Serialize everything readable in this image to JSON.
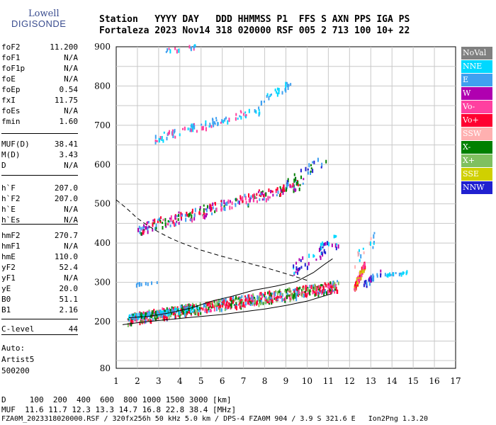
{
  "logo": {
    "line1": "Lowell",
    "line2": "DIGISONDE"
  },
  "header": {
    "line1": "Station   YYYY DAY   DDD HHMMSS P1  FFS S AXN PPS IGA PS",
    "line2": "Fortaleza 2023 Nov14 318 020000 RSF 005 2 713 100 10+ 22"
  },
  "params": [
    {
      "k": "foF2",
      "v": "11.200"
    },
    {
      "k": "foF1",
      "v": "N/A"
    },
    {
      "k": "foF1p",
      "v": "N/A"
    },
    {
      "k": "foE",
      "v": "N/A"
    },
    {
      "k": "foEp",
      "v": "0.54"
    },
    {
      "k": "fxI",
      "v": "11.75"
    },
    {
      "k": "foEs",
      "v": "N/A"
    },
    {
      "k": "fmin",
      "v": "1.60"
    },
    {
      "k": "MUF(D)",
      "v": "38.41"
    },
    {
      "k": "M(D)",
      "v": "3.43"
    },
    {
      "k": "D",
      "v": "N/A"
    },
    {
      "k": "h`F",
      "v": "207.0"
    },
    {
      "k": "h`F2",
      "v": "207.0"
    },
    {
      "k": "h`E",
      "v": "N/A"
    },
    {
      "k": "h`Es",
      "v": "N/A"
    },
    {
      "k": "hmF2",
      "v": "270.7"
    },
    {
      "k": "hmF1",
      "v": "N/A"
    },
    {
      "k": "hmE",
      "v": "110.0"
    },
    {
      "k": "yF2",
      "v": "52.4"
    },
    {
      "k": "yF1",
      "v": "N/A"
    },
    {
      "k": "yE",
      "v": "20.0"
    },
    {
      "k": "B0",
      "v": "51.1"
    },
    {
      "k": "B1",
      "v": "2.16"
    },
    {
      "k": "C-level",
      "v": "44"
    }
  ],
  "auto": {
    "l1": "Auto:",
    "l2": "Artist5",
    "l3": "500200"
  },
  "legend": [
    {
      "label": "NoVal",
      "color": "#808080"
    },
    {
      "label": "NNE",
      "color": "#00d8ff"
    },
    {
      "label": "E",
      "color": "#40a0f0"
    },
    {
      "label": "W",
      "color": "#b000b0"
    },
    {
      "label": "Vo-",
      "color": "#ff40a0"
    },
    {
      "label": "Vo+",
      "color": "#ff0030"
    },
    {
      "label": "SSW",
      "color": "#ffb0b0"
    },
    {
      "label": "X-",
      "color": "#008000"
    },
    {
      "label": "X+",
      "color": "#80c060"
    },
    {
      "label": "SSE",
      "color": "#d0d000"
    },
    {
      "label": "NNW",
      "color": "#2020d0"
    }
  ],
  "bottom": {
    "line1": "D     100  200  400  600  800 1000 1500 3000 [km]",
    "line2": "MUF  11.6 11.7 12.3 13.3 14.7 16.8 22.8 38.4 [MHz]",
    "line3": "FZA0M_2023318020000.RSF / 320fx256h 50 kHz 5.0 km / DPS-4 FZA0M 904 / 3.9 S 321.6 E   Ion2Png 1.3.20"
  },
  "chart_data": {
    "type": "scatter",
    "xlim": [
      1,
      17
    ],
    "ylim": [
      80,
      900
    ],
    "xticks": [
      1,
      2,
      3,
      4,
      5,
      6,
      7,
      8,
      9,
      10,
      11,
      12,
      13,
      14,
      15,
      16,
      17
    ],
    "yticks": [
      80,
      200,
      300,
      400,
      500,
      600,
      700,
      800,
      900
    ],
    "grid": true,
    "clusters": [
      {
        "x": [
          1.5,
          11.5
        ],
        "y": [
          205,
          290
        ],
        "dy": 14,
        "n": 700,
        "colors": [
          "#ff0030",
          "#ff0030",
          "#ff40a0",
          "#008000",
          "#80c060",
          "#40a0f0"
        ]
      },
      {
        "x": [
          1.5,
          5.0
        ],
        "y": [
          210,
          235
        ],
        "dy": 6,
        "n": 120,
        "colors": [
          "#00d8ff",
          "#40a0f0",
          "#008000"
        ]
      },
      {
        "x": [
          12.2,
          12.7
        ],
        "y": [
          285,
          345
        ],
        "dy": 10,
        "n": 90,
        "colors": [
          "#ff0030",
          "#ff40a0",
          "#d0d000"
        ]
      },
      {
        "x": [
          12.6,
          13.5
        ],
        "y": [
          290,
          330
        ],
        "dy": 8,
        "n": 25,
        "colors": [
          "#2020d0",
          "#b000b0",
          "#40a0f0"
        ]
      },
      {
        "x": [
          13.6,
          14.7
        ],
        "y": [
          318,
          325
        ],
        "dy": 3,
        "n": 20,
        "colors": [
          "#00d8ff",
          "#40a0f0"
        ]
      },
      {
        "x": [
          9.3,
          11.5
        ],
        "y": [
          335,
          410
        ],
        "dy": 20,
        "n": 50,
        "colors": [
          "#2020d0",
          "#b000b0",
          "#00d8ff"
        ]
      },
      {
        "x": [
          12.2,
          13.3
        ],
        "y": [
          350,
          420
        ],
        "dy": 18,
        "n": 18,
        "colors": [
          "#40a0f0",
          "#00d8ff",
          "#ffb0b0"
        ]
      },
      {
        "x": [
          2.0,
          9.8
        ],
        "y": [
          435,
          550
        ],
        "dy": 14,
        "n": 260,
        "colors": [
          "#ff0030",
          "#40a0f0",
          "#ff40a0",
          "#008000",
          "#b000b0"
        ]
      },
      {
        "x": [
          9.0,
          11.0
        ],
        "y": [
          560,
          615
        ],
        "dy": 14,
        "n": 25,
        "colors": [
          "#40a0f0",
          "#008000",
          "#2020d0"
        ]
      },
      {
        "x": [
          2.8,
          7.8
        ],
        "y": [
          665,
          740
        ],
        "dy": 10,
        "n": 90,
        "colors": [
          "#40a0f0",
          "#ff40a0",
          "#00d8ff"
        ]
      },
      {
        "x": [
          7.8,
          9.2
        ],
        "y": [
          760,
          805
        ],
        "dy": 10,
        "n": 30,
        "colors": [
          "#40a0f0",
          "#00d8ff"
        ]
      },
      {
        "x": [
          3.2,
          4.8
        ],
        "y": [
          888,
          900
        ],
        "dy": 4,
        "n": 15,
        "colors": [
          "#40a0f0",
          "#00d8ff",
          "#ff40a0"
        ]
      },
      {
        "x": [
          1.8,
          3.0
        ],
        "y": [
          295,
          300
        ],
        "dy": 2,
        "n": 10,
        "colors": [
          "#40a0f0"
        ]
      }
    ],
    "lines": [
      {
        "style": "solid",
        "x": [
          1.3,
          2,
          3,
          4,
          5,
          6,
          7,
          8,
          9,
          10,
          10.6,
          11.1
        ],
        "y": [
          192,
          197,
          203,
          208,
          213,
          218,
          225,
          232,
          241,
          252,
          262,
          270
        ]
      },
      {
        "style": "solid",
        "x": [
          1.6,
          2.5,
          3.5,
          4.5,
          5.5,
          6.5,
          7.5,
          8.5,
          9.5,
          10.3,
          10.8,
          11.2
        ],
        "y": [
          210,
          213,
          222,
          234,
          252,
          265,
          280,
          290,
          302,
          325,
          345,
          360
        ]
      },
      {
        "style": "dashed",
        "x": [
          1,
          1.5,
          2,
          2.5,
          3,
          3.5,
          4,
          5,
          6,
          7,
          8,
          9,
          10
        ],
        "y": [
          510,
          488,
          463,
          444,
          428,
          414,
          402,
          382,
          366,
          352,
          338,
          322,
          305
        ]
      }
    ]
  }
}
